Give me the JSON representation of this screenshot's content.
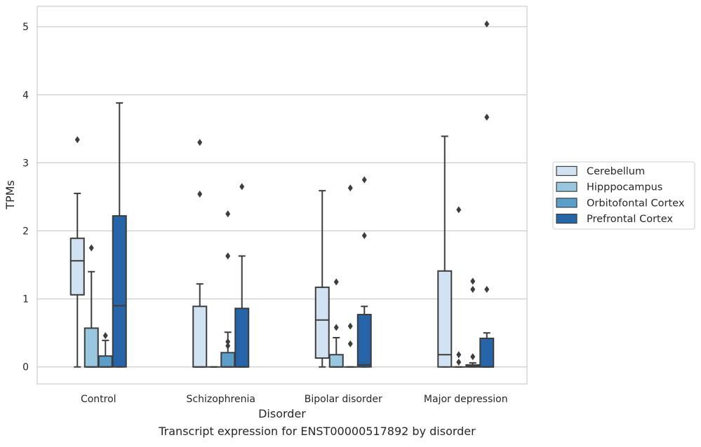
{
  "caption": "Transcript expression for ENST00000517892 by disorder",
  "chart_data": {
    "type": "box",
    "xlabel": "Disorder",
    "ylabel": "TPMs",
    "ylim": [
      -0.25,
      5.3
    ],
    "yticks": [
      0,
      1,
      2,
      3,
      4,
      5
    ],
    "grid": "y",
    "legend_position": "right",
    "categories": [
      "Control",
      "Schizophrenia",
      "Bipolar disorder",
      "Major depression"
    ],
    "series": [
      {
        "name": "Cerebellum",
        "color": "#d1e2f2",
        "boxes": [
          {
            "whislo": 0.0,
            "q1": 1.06,
            "med": 1.56,
            "q3": 1.89,
            "whishi": 2.55,
            "fliers": [
              3.34
            ]
          },
          {
            "whislo": 0.0,
            "q1": 0.0,
            "med": 0.0,
            "q3": 0.89,
            "whishi": 1.22,
            "fliers": [
              2.54,
              3.3
            ]
          },
          {
            "whislo": 0.0,
            "q1": 0.13,
            "med": 0.69,
            "q3": 1.17,
            "whishi": 2.59,
            "fliers": []
          },
          {
            "whislo": 0.0,
            "q1": 0.0,
            "med": 0.18,
            "q3": 1.41,
            "whishi": 3.39,
            "fliers": []
          }
        ]
      },
      {
        "name": "Hipppocampus",
        "color": "#9ac7e0",
        "boxes": [
          {
            "whislo": 0.0,
            "q1": 0.0,
            "med": 0.0,
            "q3": 0.57,
            "whishi": 1.4,
            "fliers": [
              1.75
            ]
          },
          {
            "whislo": 0.0,
            "q1": 0.0,
            "med": 0.0,
            "q3": 0.0,
            "whishi": 0.0,
            "fliers": []
          },
          {
            "whislo": 0.0,
            "q1": 0.0,
            "med": 0.0,
            "q3": 0.18,
            "whishi": 0.43,
            "fliers": [
              0.58,
              1.25
            ]
          },
          {
            "whislo": 0.0,
            "q1": 0.0,
            "med": 0.0,
            "q3": 0.0,
            "whishi": 0.0,
            "fliers": [
              0.07,
              0.18,
              2.31
            ]
          }
        ]
      },
      {
        "name": "Orbitofontal Cortex",
        "color": "#5a9ec9",
        "boxes": [
          {
            "whislo": 0.0,
            "q1": 0.0,
            "med": 0.0,
            "q3": 0.16,
            "whishi": 0.39,
            "fliers": [
              0.46
            ]
          },
          {
            "whislo": 0.0,
            "q1": 0.0,
            "med": 0.0,
            "q3": 0.21,
            "whishi": 0.51,
            "fliers": [
              0.31,
              0.37,
              1.63,
              2.25
            ]
          },
          {
            "whislo": 0.0,
            "q1": 0.0,
            "med": 0.0,
            "q3": 0.0,
            "whishi": 0.0,
            "fliers": [
              0.34,
              0.6,
              2.63
            ]
          },
          {
            "whislo": 0.0,
            "q1": 0.0,
            "med": 0.01,
            "q3": 0.03,
            "whishi": 0.06,
            "fliers": [
              0.15,
              1.14,
              1.26
            ]
          }
        ]
      },
      {
        "name": "Prefrontal Cortex",
        "color": "#2565a8",
        "boxes": [
          {
            "whislo": 0.0,
            "q1": 0.0,
            "med": 0.9,
            "q3": 2.22,
            "whishi": 3.88,
            "fliers": []
          },
          {
            "whislo": 0.0,
            "q1": 0.0,
            "med": 0.0,
            "q3": 0.86,
            "whishi": 1.63,
            "fliers": [
              2.65
            ]
          },
          {
            "whislo": 0.0,
            "q1": 0.0,
            "med": 0.03,
            "q3": 0.77,
            "whishi": 0.89,
            "fliers": [
              1.93,
              2.75
            ]
          },
          {
            "whislo": 0.0,
            "q1": 0.0,
            "med": 0.0,
            "q3": 0.42,
            "whishi": 0.5,
            "fliers": [
              1.14,
              3.67,
              5.04
            ]
          }
        ]
      }
    ]
  }
}
